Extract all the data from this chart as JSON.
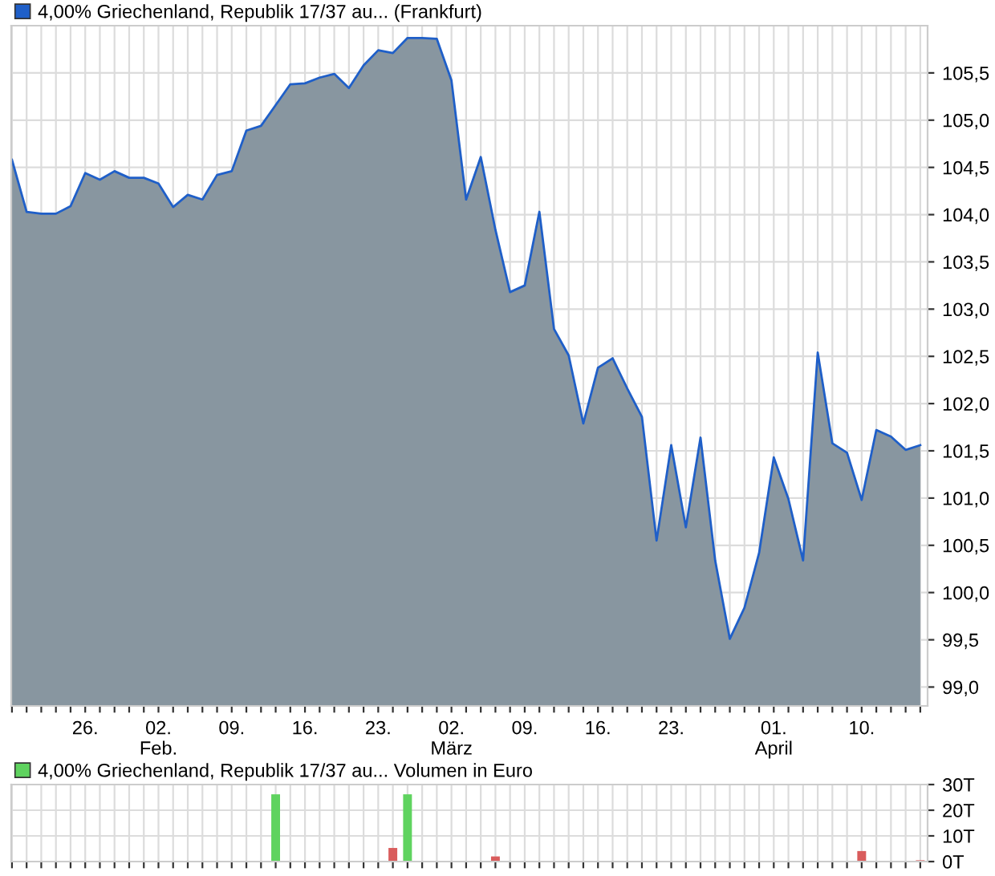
{
  "chart_data": [
    {
      "type": "area",
      "categories": [
        null,
        null,
        null,
        null,
        null,
        "26.",
        null,
        null,
        null,
        null,
        "02.\nFeb.",
        null,
        null,
        null,
        null,
        "09.",
        null,
        null,
        null,
        null,
        "16.",
        null,
        null,
        null,
        null,
        "23.",
        null,
        null,
        null,
        null,
        "02.\nMärz",
        null,
        null,
        null,
        null,
        "09.",
        null,
        null,
        null,
        null,
        "16.",
        null,
        null,
        null,
        null,
        "23.",
        null,
        null,
        null,
        null,
        null,
        null,
        "01.\nApril",
        null,
        null,
        null,
        null,
        null,
        "10.",
        null,
        null,
        null,
        null
      ],
      "series": [
        {
          "name": "4,00% Griechenland, Republik 17/37 au... (Frankfurt)",
          "color": "#1f5fc8",
          "values": [
            104.58,
            104.03,
            104.01,
            104.01,
            104.09,
            104.44,
            104.37,
            104.46,
            104.39,
            104.39,
            104.33,
            104.08,
            104.21,
            104.16,
            104.42,
            104.46,
            104.89,
            104.94,
            105.16,
            105.38,
            105.39,
            105.45,
            105.49,
            105.34,
            105.58,
            105.74,
            105.71,
            105.87,
            105.87,
            105.86,
            105.42,
            104.16,
            104.61,
            103.84,
            103.18,
            103.25,
            104.03,
            102.79,
            102.51,
            101.79,
            102.38,
            102.48,
            102.16,
            101.86,
            100.55,
            101.56,
            100.69,
            101.64,
            100.34,
            99.51,
            99.84,
            100.42,
            101.43,
            100.99,
            100.34,
            102.54,
            101.58,
            101.48,
            100.98,
            101.72,
            101.65,
            101.51,
            101.56
          ]
        }
      ],
      "ylim": [
        98.8,
        106.0
      ],
      "yticks": [
        {
          "value": 99.0,
          "label": "99,0"
        },
        {
          "value": 99.5,
          "label": "99,5"
        },
        {
          "value": 100.0,
          "label": "100,0"
        },
        {
          "value": 100.5,
          "label": "100,5"
        },
        {
          "value": 101.0,
          "label": "101,0"
        },
        {
          "value": 101.5,
          "label": "101,5"
        },
        {
          "value": 102.0,
          "label": "102,0"
        },
        {
          "value": 102.5,
          "label": "102,5"
        },
        {
          "value": 103.0,
          "label": "103,0"
        },
        {
          "value": 103.5,
          "label": "103,5"
        },
        {
          "value": 104.0,
          "label": "104,0"
        },
        {
          "value": 104.5,
          "label": "104,5"
        },
        {
          "value": 105.0,
          "label": "105,0"
        },
        {
          "value": 105.5,
          "label": "105,5"
        }
      ],
      "grid": true,
      "legend": "top left"
    },
    {
      "type": "bar",
      "categories": [
        null,
        null,
        null,
        null,
        null,
        null,
        null,
        null,
        null,
        null,
        null,
        null,
        null,
        null,
        null,
        null,
        null,
        null,
        null,
        null,
        null,
        null,
        null,
        null,
        null,
        null,
        null,
        null,
        null,
        null,
        null,
        null,
        null,
        null,
        null,
        null,
        null,
        null,
        null,
        null,
        null,
        null,
        null,
        null,
        null,
        null,
        null,
        null,
        null,
        null,
        null,
        null,
        null,
        null,
        null,
        null,
        null,
        null,
        null,
        null,
        null,
        null,
        null
      ],
      "series": [
        {
          "name": "4,00% Griechenland, Republik 17/37 au... Volumen in Euro",
          "color": "#5fd35f",
          "values": [
            null,
            null,
            null,
            null,
            null,
            null,
            null,
            null,
            null,
            null,
            null,
            null,
            null,
            null,
            null,
            null,
            null,
            null,
            26.2,
            null,
            null,
            null,
            null,
            null,
            null,
            null,
            5.3,
            26.2,
            null,
            null,
            null,
            null,
            null,
            2.0,
            null,
            null,
            null,
            null,
            null,
            null,
            null,
            null,
            null,
            null,
            null,
            null,
            null,
            null,
            null,
            null,
            null,
            null,
            null,
            null,
            null,
            null,
            null,
            null,
            4.1,
            null,
            null,
            null,
            0.5
          ],
          "colors": [
            null,
            null,
            null,
            null,
            null,
            null,
            null,
            null,
            null,
            null,
            null,
            null,
            null,
            null,
            null,
            null,
            null,
            null,
            "#5fd35f",
            null,
            null,
            null,
            null,
            null,
            null,
            null,
            "#d95c5c",
            "#5fd35f",
            null,
            null,
            null,
            null,
            null,
            "#d95c5c",
            null,
            null,
            null,
            null,
            null,
            null,
            null,
            null,
            null,
            null,
            null,
            null,
            null,
            null,
            null,
            null,
            null,
            null,
            null,
            null,
            null,
            null,
            null,
            null,
            "#d95c5c",
            null,
            null,
            null,
            "#d95c5c"
          ]
        }
      ],
      "ylim": [
        0,
        30
      ],
      "yticks": [
        {
          "value": 0,
          "label": "0T"
        },
        {
          "value": 10,
          "label": "10T"
        },
        {
          "value": 20,
          "label": "20T"
        },
        {
          "value": 30,
          "label": "30T"
        }
      ],
      "grid": true,
      "legend": "top left",
      "tick_labels": "y"
    }
  ]
}
